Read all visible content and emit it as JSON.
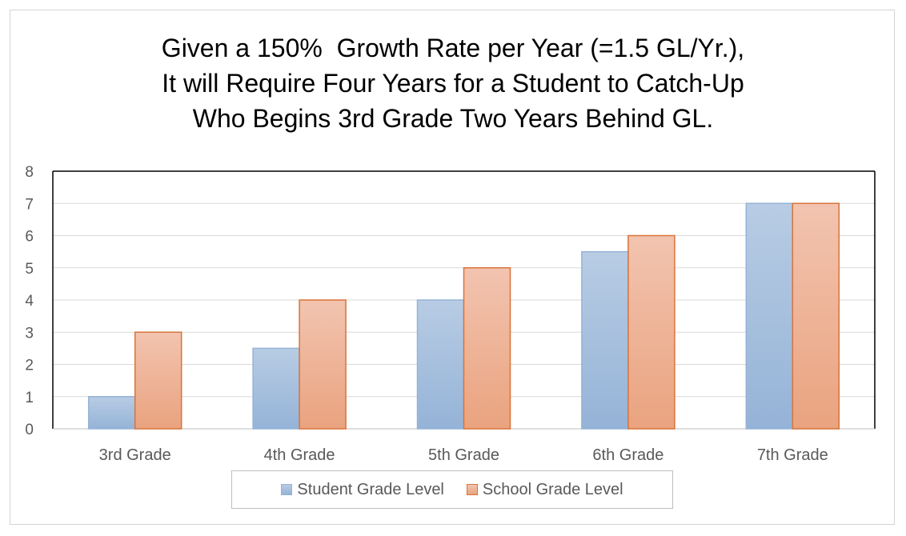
{
  "chart_data": {
    "type": "bar",
    "title_lines": [
      "Given a 150%  Growth Rate per Year (=1.5 GL/Yr.),",
      "It will Require Four Years for a Student to Catch-Up",
      "Who Begins 3rd Grade Two Years Behind GL."
    ],
    "categories": [
      "3rd Grade",
      "4th Grade",
      "5th Grade",
      "6th Grade",
      "7th Grade"
    ],
    "series": [
      {
        "name": "Student Grade Level",
        "values": [
          1,
          2.5,
          4,
          5.5,
          7
        ],
        "fill_top": "#b8cce4",
        "fill_bottom": "#95b3d7",
        "stroke": "#95b3d7"
      },
      {
        "name": "School Grade Level",
        "values": [
          3,
          4,
          5,
          6,
          7
        ],
        "fill_top": "#f2c4b0",
        "fill_bottom": "#eaa37f",
        "stroke": "#d9733a"
      }
    ],
    "ylim": [
      0,
      8
    ],
    "yticks": [
      "0",
      "1",
      "2",
      "3",
      "4",
      "5",
      "6",
      "7",
      "8"
    ],
    "xlabel": "",
    "ylabel": "",
    "grid": true,
    "legend_position": "bottom"
  }
}
